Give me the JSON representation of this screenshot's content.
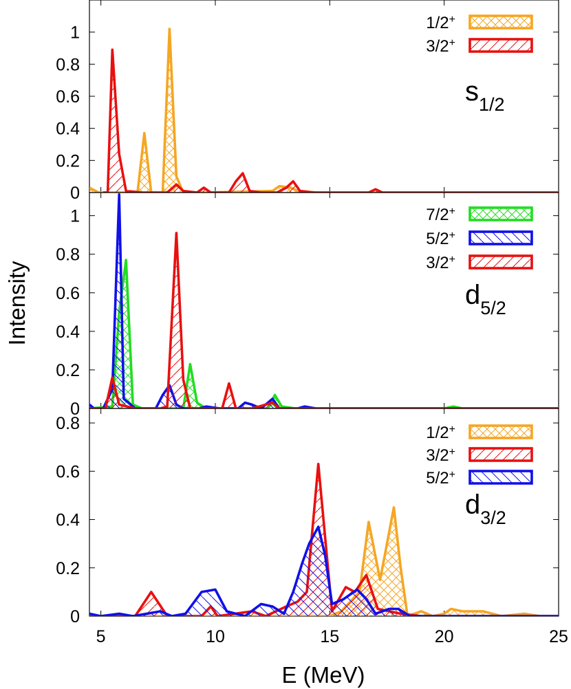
{
  "chart_data": {
    "type": "line",
    "ylabel": "Intensity",
    "xlabel": "E (MeV)",
    "xlim": [
      4.5,
      25
    ],
    "xticks": [
      "5",
      "10",
      "15",
      "20",
      "25"
    ],
    "colors": {
      "1/2+": "#f5a623",
      "3/2+": "#e81010",
      "5/2+": "#1010e8",
      "7/2+": "#22dd22"
    },
    "panels": [
      {
        "wave_main": "s",
        "wave_sub": "1/2",
        "ylim": [
          0,
          1.2
        ],
        "yticks": [
          "0",
          "0.2",
          "0.4",
          "0.6",
          "0.8",
          "1"
        ],
        "series": [
          {
            "name": "1/2",
            "sup": "+",
            "color": "#f5a623",
            "pattern": "cross",
            "points": [
              [
                4.5,
                0.03
              ],
              [
                4.9,
                0.0
              ],
              [
                6.0,
                0.0
              ],
              [
                6.6,
                0.0
              ],
              [
                6.9,
                0.37
              ],
              [
                7.2,
                0.0
              ],
              [
                7.7,
                0.0
              ],
              [
                8.0,
                1.02
              ],
              [
                8.3,
                0.1
              ],
              [
                8.6,
                0.0
              ],
              [
                9.5,
                0.0
              ],
              [
                12.5,
                0.01
              ],
              [
                12.8,
                0.04
              ],
              [
                13.3,
                0.03
              ],
              [
                13.6,
                0.01
              ],
              [
                14.5,
                0.0
              ],
              [
                25,
                0.0
              ]
            ]
          },
          {
            "name": "3/2",
            "sup": "+",
            "color": "#e81010",
            "pattern": "slash",
            "points": [
              [
                5.1,
                0.0
              ],
              [
                5.3,
                0.0
              ],
              [
                5.5,
                0.89
              ],
              [
                5.8,
                0.24
              ],
              [
                6.1,
                0.01
              ],
              [
                6.8,
                0.0
              ],
              [
                7.9,
                0.0
              ],
              [
                8.3,
                0.05
              ],
              [
                8.6,
                0.01
              ],
              [
                9.2,
                0.0
              ],
              [
                9.5,
                0.03
              ],
              [
                9.8,
                0.0
              ],
              [
                10.6,
                0.0
              ],
              [
                10.9,
                0.07
              ],
              [
                11.2,
                0.12
              ],
              [
                11.5,
                0.01
              ],
              [
                12.0,
                0.0
              ],
              [
                12.7,
                0.0
              ],
              [
                13.1,
                0.03
              ],
              [
                13.4,
                0.07
              ],
              [
                13.7,
                0.01
              ],
              [
                14.3,
                0.0
              ],
              [
                16.7,
                0.0
              ],
              [
                17.0,
                0.02
              ],
              [
                17.3,
                0.0
              ],
              [
                25,
                0.0
              ]
            ]
          }
        ]
      },
      {
        "wave_main": "d",
        "wave_sub": "5/2",
        "ylim": [
          0,
          1.12
        ],
        "yticks": [
          "0",
          "0.2",
          "0.4",
          "0.6",
          "0.8",
          "1"
        ],
        "series": [
          {
            "name": "7/2",
            "sup": "+",
            "color": "#22dd22",
            "pattern": "cross",
            "points": [
              [
                4.5,
                0.0
              ],
              [
                5.5,
                0.01
              ],
              [
                5.8,
                0.5
              ],
              [
                6.1,
                0.77
              ],
              [
                6.4,
                0.02
              ],
              [
                6.8,
                0.0
              ],
              [
                8.6,
                0.0
              ],
              [
                8.9,
                0.23
              ],
              [
                9.2,
                0.03
              ],
              [
                9.6,
                0.0
              ],
              [
                12.3,
                0.0
              ],
              [
                12.6,
                0.07
              ],
              [
                12.9,
                0.01
              ],
              [
                13.5,
                0.0
              ],
              [
                20.0,
                0.0
              ],
              [
                20.4,
                0.01
              ],
              [
                20.8,
                0.0
              ],
              [
                25,
                0.0
              ]
            ]
          },
          {
            "name": "5/2",
            "sup": "+",
            "color": "#1010e8",
            "pattern": "backslash",
            "points": [
              [
                4.5,
                0.02
              ],
              [
                4.7,
                0.0
              ],
              [
                5.1,
                0.0
              ],
              [
                5.5,
                0.1
              ],
              [
                5.8,
                1.11
              ],
              [
                6.0,
                0.05
              ],
              [
                6.2,
                0.03
              ],
              [
                6.5,
                0.0
              ],
              [
                7.4,
                0.0
              ],
              [
                7.7,
                0.07
              ],
              [
                8.0,
                0.12
              ],
              [
                8.3,
                0.02
              ],
              [
                8.6,
                0.0
              ],
              [
                9.3,
                0.0
              ],
              [
                9.6,
                0.01
              ],
              [
                10.2,
                0.0
              ],
              [
                11.0,
                0.0
              ],
              [
                11.3,
                0.03
              ],
              [
                11.6,
                0.02
              ],
              [
                12.0,
                0.0
              ],
              [
                12.5,
                0.05
              ],
              [
                12.8,
                0.0
              ],
              [
                13.6,
                0.0
              ],
              [
                13.9,
                0.01
              ],
              [
                14.4,
                0.0
              ],
              [
                25,
                0.0
              ]
            ]
          },
          {
            "name": "3/2",
            "sup": "+",
            "color": "#e81010",
            "pattern": "slash",
            "points": [
              [
                4.5,
                0.0
              ],
              [
                5.2,
                0.0
              ],
              [
                5.5,
                0.16
              ],
              [
                5.8,
                0.02
              ],
              [
                6.5,
                0.0
              ],
              [
                7.6,
                0.0
              ],
              [
                7.9,
                0.01
              ],
              [
                8.3,
                0.91
              ],
              [
                8.6,
                0.15
              ],
              [
                8.9,
                0.0
              ],
              [
                10.3,
                0.0
              ],
              [
                10.6,
                0.13
              ],
              [
                10.9,
                0.0
              ],
              [
                11.6,
                0.0
              ],
              [
                11.9,
                0.01
              ],
              [
                12.5,
                0.03
              ],
              [
                12.8,
                0.0
              ],
              [
                25,
                0.0
              ]
            ]
          }
        ]
      },
      {
        "wave_main": "d",
        "wave_sub": "3/2",
        "ylim": [
          0,
          0.86
        ],
        "yticks": [
          "0",
          "0.2",
          "0.4",
          "0.6",
          "0.8"
        ],
        "series": [
          {
            "name": "1/2",
            "sup": "+",
            "color": "#f5a623",
            "pattern": "cross",
            "points": [
              [
                4.5,
                0.0
              ],
              [
                15.0,
                0.0
              ],
              [
                15.5,
                0.02
              ],
              [
                16.0,
                0.07
              ],
              [
                16.3,
                0.1
              ],
              [
                16.7,
                0.39
              ],
              [
                17.2,
                0.15
              ],
              [
                17.8,
                0.45
              ],
              [
                18.1,
                0.2
              ],
              [
                18.4,
                0.0
              ],
              [
                19.0,
                0.02
              ],
              [
                19.5,
                0.0
              ],
              [
                20.0,
                0.01
              ],
              [
                20.3,
                0.03
              ],
              [
                20.8,
                0.02
              ],
              [
                21.7,
                0.02
              ],
              [
                22.5,
                0.0
              ],
              [
                23.5,
                0.01
              ],
              [
                24.2,
                0.0
              ],
              [
                25,
                0.0
              ]
            ]
          },
          {
            "name": "3/2",
            "sup": "+",
            "color": "#e81010",
            "pattern": "slash",
            "points": [
              [
                4.5,
                0.0
              ],
              [
                6.5,
                0.0
              ],
              [
                7.2,
                0.1
              ],
              [
                7.9,
                0.0
              ],
              [
                9.4,
                0.0
              ],
              [
                9.8,
                0.04
              ],
              [
                10.1,
                0.0
              ],
              [
                11.6,
                0.02
              ],
              [
                12.2,
                0.0
              ],
              [
                13.1,
                0.04
              ],
              [
                13.6,
                0.06
              ],
              [
                14.0,
                0.1
              ],
              [
                14.5,
                0.63
              ],
              [
                15.1,
                0.02
              ],
              [
                15.7,
                0.12
              ],
              [
                16.1,
                0.1
              ],
              [
                16.6,
                0.17
              ],
              [
                17.1,
                0.03
              ],
              [
                17.6,
                0.02
              ],
              [
                18.1,
                0.01
              ],
              [
                19.0,
                0.0
              ],
              [
                25,
                0.0
              ]
            ]
          },
          {
            "name": "5/2",
            "sup": "+",
            "color": "#1010e8",
            "pattern": "backslash",
            "points": [
              [
                4.5,
                0.01
              ],
              [
                5.0,
                0.0
              ],
              [
                5.8,
                0.01
              ],
              [
                6.4,
                0.0
              ],
              [
                7.6,
                0.02
              ],
              [
                8.1,
                0.0
              ],
              [
                8.7,
                0.01
              ],
              [
                9.4,
                0.1
              ],
              [
                10.0,
                0.11
              ],
              [
                10.5,
                0.02
              ],
              [
                11.3,
                0.0
              ],
              [
                12.0,
                0.05
              ],
              [
                12.5,
                0.04
              ],
              [
                13.0,
                0.01
              ],
              [
                13.4,
                0.1
              ],
              [
                13.8,
                0.22
              ],
              [
                14.1,
                0.3
              ],
              [
                14.5,
                0.37
              ],
              [
                14.8,
                0.25
              ],
              [
                15.1,
                0.05
              ],
              [
                15.6,
                0.07
              ],
              [
                16.2,
                0.11
              ],
              [
                16.6,
                0.07
              ],
              [
                17.0,
                0.01
              ],
              [
                17.6,
                0.03
              ],
              [
                18.0,
                0.03
              ],
              [
                18.5,
                0.0
              ],
              [
                19.8,
                0.0
              ],
              [
                25,
                0.0
              ]
            ]
          }
        ]
      }
    ]
  }
}
